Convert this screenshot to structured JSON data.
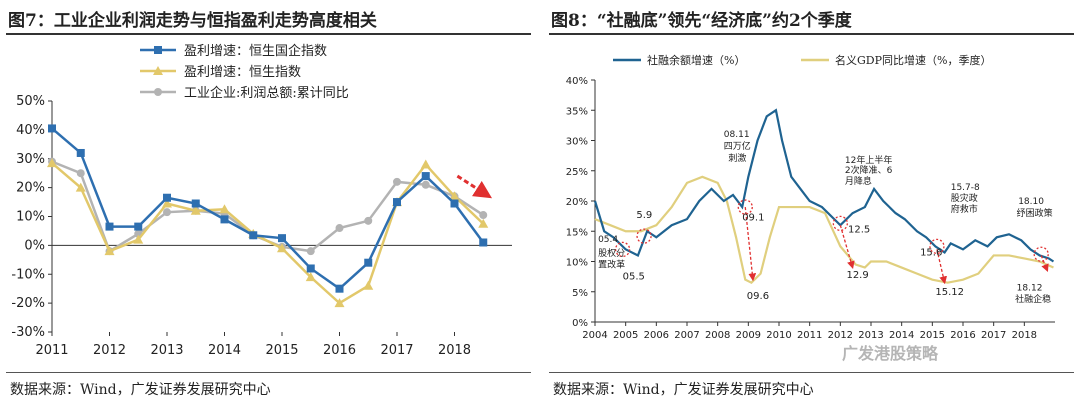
{
  "colors": {
    "hsce": "#2e6fb0",
    "hsi": "#e2c86a",
    "industrial": "#b3b3b3",
    "tsf": "#1f6391",
    "gdp": "#e0cf7e",
    "red": "#e03030"
  },
  "left_chart": {
    "title": "图7：工业企业利润走势与恒指盈利走势高度相关",
    "source": "数据来源：Wind，广发证券发展研究中心",
    "chart_data": {
      "type": "line",
      "x_labels": [
        "2011",
        "2012",
        "2013",
        "2014",
        "2015",
        "2016",
        "2017",
        "2018"
      ],
      "y_ticks": [
        "50%",
        "40%",
        "30%",
        "20%",
        "10%",
        "0%",
        "-10%",
        "-20%",
        "-30%"
      ],
      "ylim": [
        -30,
        50
      ],
      "xlim": [
        2011,
        2019
      ],
      "trend_arrow": "red dashed arrow pointing down at the end of 2018",
      "series": [
        {
          "name": "盈利增速：恒生国企指数",
          "marker": "square",
          "color_key": "hsce",
          "x": [
            2011,
            2011.5,
            2012,
            2012.5,
            2013,
            2013.5,
            2014,
            2014.5,
            2015,
            2015.5,
            2016,
            2016.5,
            2017,
            2017.5,
            2018,
            2018.5
          ],
          "values": [
            40.5,
            32,
            6.5,
            6.5,
            16.5,
            14.5,
            9,
            3.5,
            2.5,
            -8,
            -15,
            -6,
            15,
            24,
            14.5,
            1
          ]
        },
        {
          "name": "盈利增速：恒生指数",
          "marker": "triangle",
          "color_key": "hsi",
          "x": [
            2011,
            2011.5,
            2012,
            2012.5,
            2013,
            2013.5,
            2014,
            2014.5,
            2015,
            2015.5,
            2016,
            2016.5,
            2017,
            2017.5,
            2018,
            2018.5
          ],
          "values": [
            28.5,
            20,
            -2,
            2,
            14.5,
            12,
            12.5,
            4,
            -1,
            -11,
            -20,
            -14,
            15,
            28,
            17,
            7.5
          ]
        },
        {
          "name": "工业企业:利润总额:累计同比",
          "marker": "circle",
          "color_key": "industrial",
          "x": [
            2011,
            2011.5,
            2012,
            2012.5,
            2013,
            2013.5,
            2014,
            2014.5,
            2015,
            2015.5,
            2016,
            2016.5,
            2017,
            2017.5,
            2018,
            2018.5
          ],
          "values": [
            29,
            25,
            -2,
            4,
            11.5,
            12,
            11,
            3.5,
            -0.5,
            -2,
            6,
            8.5,
            22,
            21,
            17,
            10.5
          ]
        }
      ]
    }
  },
  "right_chart": {
    "title": "图8：“社融底”领先“经济底”约2个季度",
    "source": "数据来源：Wind，广发证券发展研究中心",
    "watermark": "广发港股策略",
    "chart_data": {
      "type": "line",
      "x_labels": [
        "2004",
        "2005",
        "2006",
        "2007",
        "2008",
        "2009",
        "2010",
        "2011",
        "2012",
        "2013",
        "2014",
        "2015",
        "2016",
        "2017",
        "2018"
      ],
      "y_ticks": [
        "40%",
        "35%",
        "30%",
        "25%",
        "20%",
        "15%",
        "10%",
        "5%",
        "0%"
      ],
      "ylim": [
        0,
        40
      ],
      "xlim": [
        2004,
        2019
      ],
      "series": [
        {
          "name": "社融余额增速（%）",
          "color_key": "tsf",
          "x": [
            2004,
            2004.3,
            2004.6,
            2005,
            2005.4,
            2005.7,
            2006,
            2006.5,
            2007,
            2007.4,
            2007.8,
            2008.2,
            2008.5,
            2008.8,
            2009,
            2009.3,
            2009.6,
            2009.9,
            2010.1,
            2010.4,
            2010.7,
            2011,
            2011.4,
            2011.8,
            2012,
            2012.4,
            2012.8,
            2013.1,
            2013.4,
            2013.8,
            2014.1,
            2014.5,
            2014.8,
            2015.1,
            2015.4,
            2015.6,
            2016,
            2016.4,
            2016.8,
            2017.1,
            2017.5,
            2017.9,
            2018.2,
            2018.5,
            2018.8,
            2018.95
          ],
          "values": [
            20,
            15,
            14,
            12,
            11,
            15,
            14,
            16,
            17,
            20,
            22,
            20,
            21,
            19,
            24,
            30,
            34,
            35,
            30,
            24,
            22,
            20,
            19,
            17,
            16,
            18,
            19,
            22,
            20,
            18,
            17,
            15,
            14,
            12.5,
            11.5,
            13,
            12,
            13.5,
            12.5,
            14,
            14.5,
            13.5,
            12,
            11,
            10.5,
            10
          ]
        },
        {
          "name": "名义GDP同比增速（%，季度）",
          "color_key": "gdp",
          "x": [
            2004,
            2004.5,
            2005,
            2005.5,
            2006,
            2006.5,
            2007,
            2007.5,
            2008,
            2008.3,
            2008.6,
            2008.9,
            2009.1,
            2009.4,
            2009.7,
            2010,
            2010.5,
            2011,
            2011.5,
            2012,
            2012.5,
            2012.8,
            2013,
            2013.5,
            2014,
            2014.5,
            2015,
            2015.5,
            2016,
            2016.5,
            2017,
            2017.5,
            2018,
            2018.5,
            2018.95
          ],
          "values": [
            17,
            16,
            15,
            15,
            16,
            19,
            23,
            24,
            23,
            20,
            14,
            7,
            6.5,
            8,
            14,
            19,
            19,
            19,
            18,
            12.5,
            9.5,
            9,
            10,
            10,
            9,
            8,
            7,
            6.5,
            7,
            8,
            11,
            11,
            10.5,
            10,
            9
          ]
        }
      ],
      "annotations": {
        "a_0811": "08.11",
        "a_four_trillion": "四万亿",
        "a_stimulus": "刺激",
        "a_1207": "12年上半年",
        "a_rrr": "2次降准、6",
        "a_rate": "月降息",
        "a_1578": "15.7-8",
        "a_stock": "股灾政",
        "a_rescue": "府救市",
        "a_1810": "18.10",
        "a_policy": "纾困政策",
        "a_054": "05.4",
        "a_reform1": "股权分",
        "a_reform2": "置改革",
        "a_0812": "18.12",
        "a_tsf_end": "社融企稳"
      },
      "point_labels": {
        "l_059": "5.9",
        "l_055": "05.5",
        "l_091": "09.1",
        "l_096": "09.6",
        "l_125": "12.5",
        "l_129": "12.9",
        "l_156": "15.6",
        "l_1512": "15.12"
      }
    }
  }
}
